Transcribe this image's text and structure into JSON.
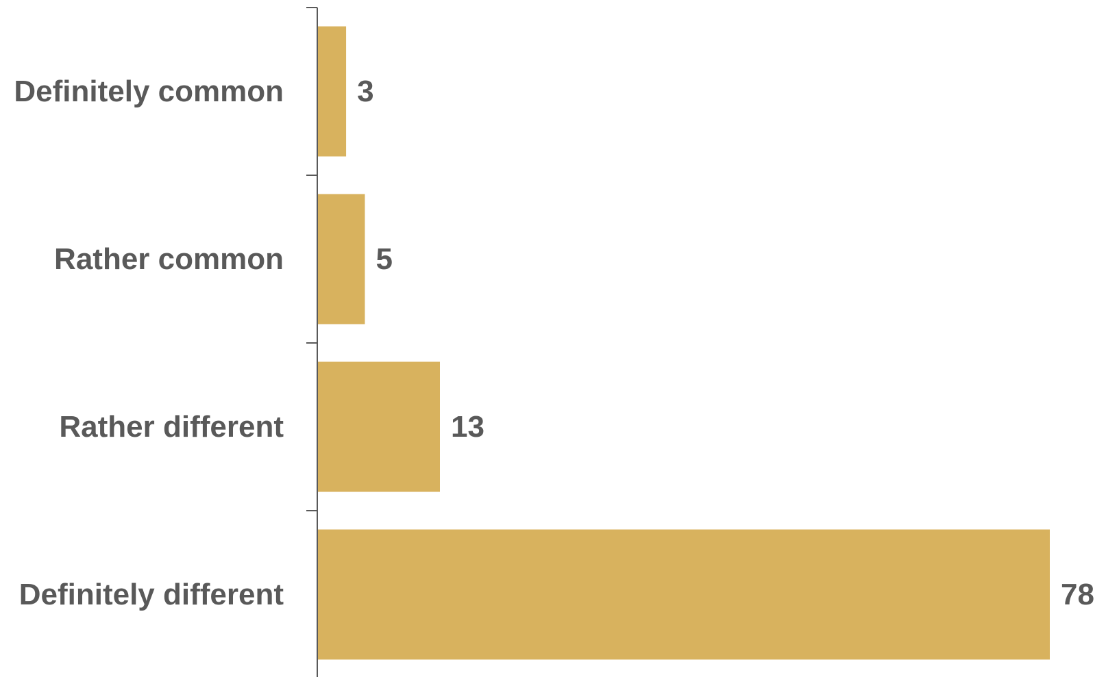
{
  "chart_data": {
    "type": "bar",
    "orientation": "horizontal",
    "categories": [
      "Definitely common",
      "Rather common",
      "Rather different",
      "Definitely different"
    ],
    "values": [
      3,
      5,
      13,
      78
    ],
    "xlim": [
      0,
      78
    ],
    "grid": false,
    "legend": "none",
    "data_labels": true,
    "colors": {
      "bar": "#D8B25E",
      "text": "#595959",
      "axis": "#595959"
    }
  }
}
